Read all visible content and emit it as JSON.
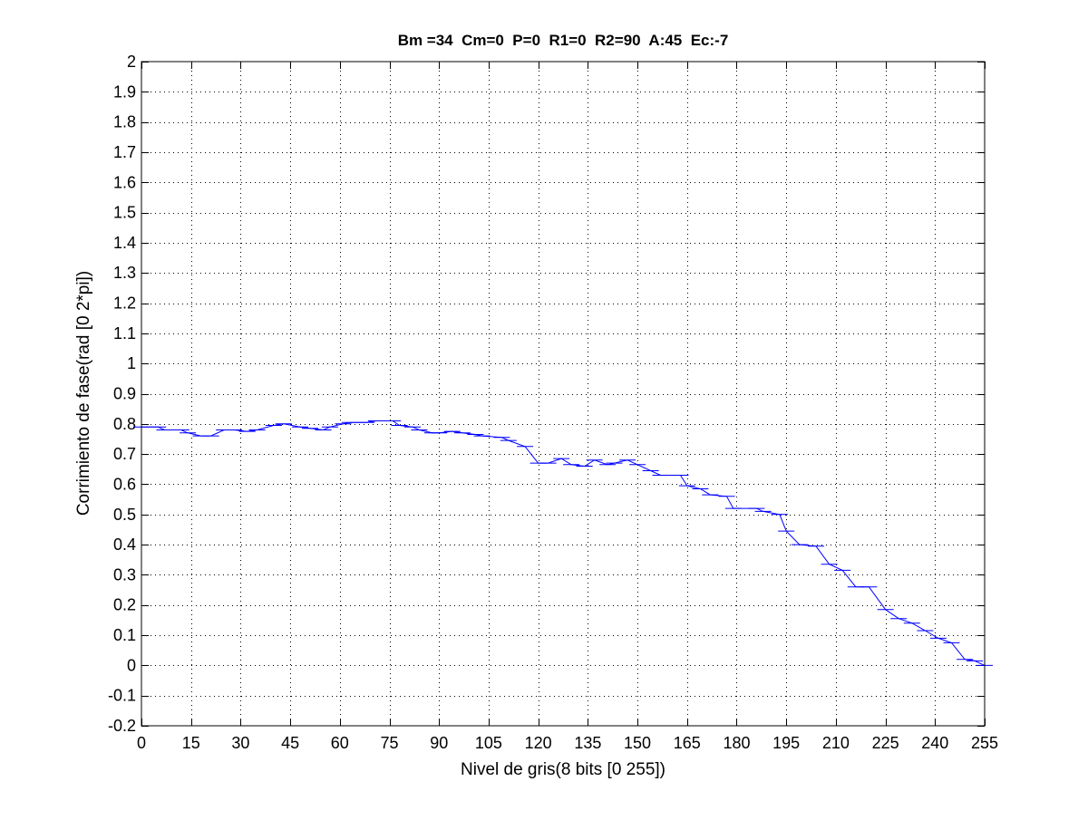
{
  "chart_data": {
    "type": "line",
    "title": "Bm =34  Cm=0  P=0  R1=0  R2=90  A:45  Ec:-7",
    "xlabel": "Nivel de gris(8 bits [0 255])",
    "ylabel": "Corrimiento de fase(rad [0 2*pi])",
    "xlim": [
      0,
      255
    ],
    "ylim": [
      -0.2,
      2
    ],
    "grid": true,
    "xticks": [
      0,
      15,
      30,
      45,
      60,
      75,
      90,
      105,
      120,
      135,
      150,
      165,
      180,
      195,
      210,
      225,
      240,
      255
    ],
    "xtick_labels": [
      "0",
      "15",
      "30",
      "45",
      "60",
      "75",
      "90",
      "105",
      "120",
      "135",
      "150",
      "165",
      "180",
      "195",
      "210",
      "225",
      "240",
      "255"
    ],
    "yticks": [
      -0.2,
      -0.1,
      0,
      0.1,
      0.2,
      0.3,
      0.4,
      0.5,
      0.6,
      0.7,
      0.8,
      0.9,
      1,
      1.1,
      1.2,
      1.3,
      1.4,
      1.5,
      1.6,
      1.7,
      1.8,
      1.9,
      2
    ],
    "ytick_labels": [
      "-0.2",
      "-0.1",
      "0",
      "0.1",
      "0.2",
      "0.3",
      "0.4",
      "0.5",
      "0.6",
      "0.7",
      "0.8",
      "0.9",
      "1",
      "1.1",
      "1.2",
      "1.3",
      "1.4",
      "1.5",
      "1.6",
      "1.7",
      "1.8",
      "1.9",
      "2"
    ],
    "series": [
      {
        "name": "fase",
        "color": "#0000ff",
        "x": [
          0,
          5,
          7,
          12,
          14,
          18,
          21,
          25,
          28,
          32,
          35,
          40,
          43,
          48,
          51,
          55,
          57,
          61,
          63,
          68,
          71,
          76,
          78,
          82,
          84,
          88,
          90,
          94,
          97,
          101,
          103,
          109,
          111,
          116,
          120,
          123,
          127,
          130,
          134,
          137,
          141,
          143,
          147,
          150,
          154,
          157,
          163,
          165,
          169,
          172,
          177,
          179,
          186,
          188,
          193,
          195,
          199,
          204,
          208,
          212,
          216,
          220,
          225,
          229,
          233,
          237,
          241,
          245,
          249,
          252,
          255
        ],
        "y": [
          0.79,
          0.79,
          0.78,
          0.78,
          0.77,
          0.76,
          0.76,
          0.78,
          0.78,
          0.775,
          0.78,
          0.795,
          0.8,
          0.79,
          0.785,
          0.78,
          0.79,
          0.8,
          0.805,
          0.805,
          0.81,
          0.81,
          0.795,
          0.79,
          0.78,
          0.77,
          0.77,
          0.775,
          0.77,
          0.765,
          0.76,
          0.755,
          0.745,
          0.725,
          0.67,
          0.67,
          0.685,
          0.665,
          0.66,
          0.68,
          0.665,
          0.67,
          0.68,
          0.665,
          0.645,
          0.63,
          0.63,
          0.595,
          0.585,
          0.565,
          0.56,
          0.52,
          0.52,
          0.51,
          0.5,
          0.445,
          0.4,
          0.395,
          0.335,
          0.315,
          0.26,
          0.26,
          0.185,
          0.155,
          0.14,
          0.115,
          0.09,
          0.075,
          0.02,
          0.015,
          0
        ]
      }
    ]
  }
}
